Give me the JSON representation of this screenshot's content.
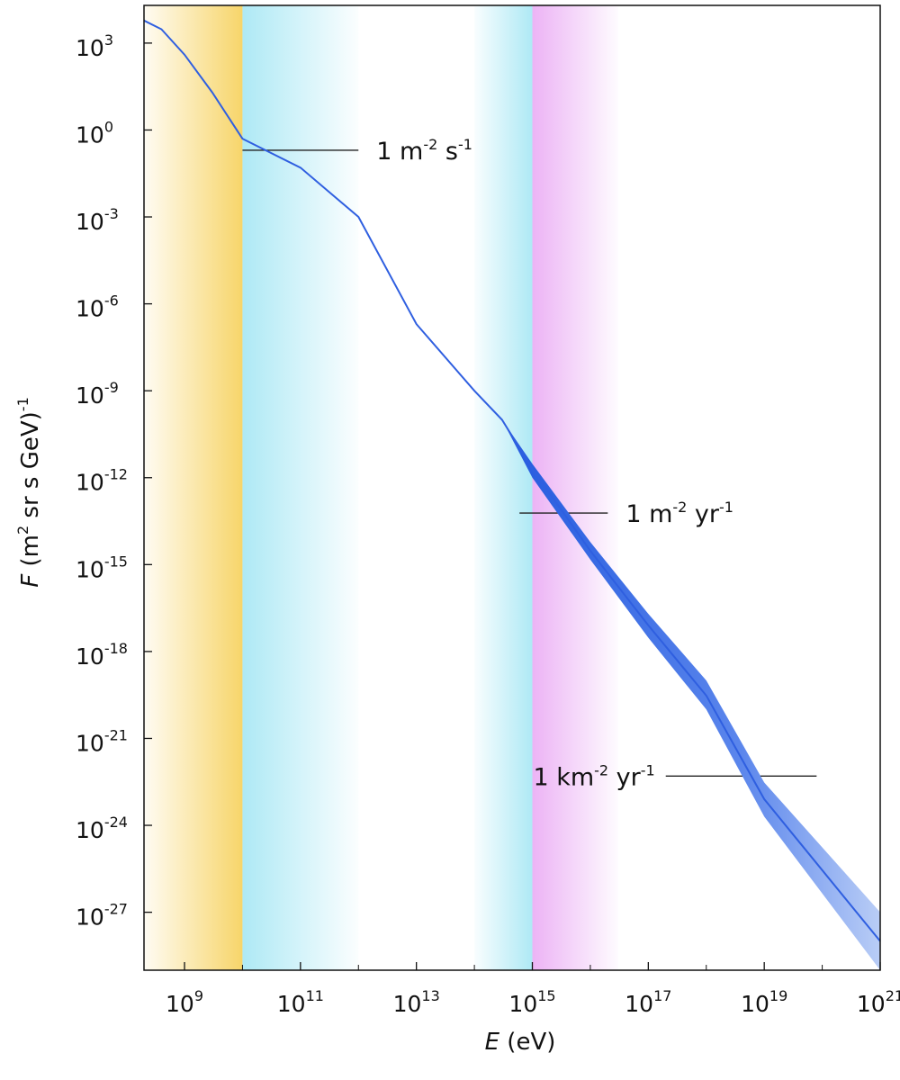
{
  "chart_data": {
    "type": "line",
    "title": "",
    "xlabel": "E (eV)",
    "xlabel_var": "E",
    "xlabel_unit": " (eV)",
    "ylabel": "F (m2 sr s GeV)-1",
    "ylabel_var": "F",
    "ylabel_unit": "m",
    "ylabel_unit_sup": "2",
    "ylabel_unit_rest": " sr s GeV)",
    "ylabel_unit_exp": "-1",
    "x_scale": "log",
    "y_scale": "log",
    "xlim": [
      200000000.0,
      1e+21
    ],
    "ylim": [
      1e-29,
      20000.0
    ],
    "x_ticks": [
      {
        "base": "10",
        "exp": "9",
        "value": 1000000000.0
      },
      {
        "base": "10",
        "exp": "11",
        "value": 100000000000.0
      },
      {
        "base": "10",
        "exp": "13",
        "value": 10000000000000.0
      },
      {
        "base": "10",
        "exp": "15",
        "value": 1000000000000000.0
      },
      {
        "base": "10",
        "exp": "17",
        "value": 1e+17
      },
      {
        "base": "10",
        "exp": "19",
        "value": 1e+19
      },
      {
        "base": "10",
        "exp": "21",
        "value": 1e+21
      }
    ],
    "y_ticks": [
      {
        "base": "10",
        "exp": "3",
        "value": 1000.0
      },
      {
        "base": "10",
        "exp": "0",
        "value": 1.0
      },
      {
        "base": "10",
        "exp": "-3",
        "value": 0.001
      },
      {
        "base": "10",
        "exp": "-6",
        "value": 1e-06
      },
      {
        "base": "10",
        "exp": "-9",
        "value": 1e-09
      },
      {
        "base": "10",
        "exp": "-12",
        "value": 1e-12
      },
      {
        "base": "10",
        "exp": "-15",
        "value": 1e-15
      },
      {
        "base": "10",
        "exp": "-18",
        "value": 1e-18
      },
      {
        "base": "10",
        "exp": "-21",
        "value": 1e-21
      },
      {
        "base": "10",
        "exp": "-24",
        "value": 1e-24
      },
      {
        "base": "10",
        "exp": "-27",
        "value": 1e-27
      }
    ],
    "grid": false,
    "series": [
      {
        "color": "#2f5fe0",
        "points": [
          {
            "x": 200000000.0,
            "y": 6000.0,
            "ylo": 6000.0,
            "yhi": 6000.0
          },
          {
            "x": 400000000.0,
            "y": 3000.0,
            "ylo": 3000.0,
            "yhi": 3000.0
          },
          {
            "x": 1000000000.0,
            "y": 400.0,
            "ylo": 400.0,
            "yhi": 400.0
          },
          {
            "x": 3000000000.0,
            "y": 20.0,
            "ylo": 20.0,
            "yhi": 20.0
          },
          {
            "x": 10000000000.0,
            "y": 0.5,
            "ylo": 0.5,
            "yhi": 0.5
          },
          {
            "x": 100000000000.0,
            "y": 0.05,
            "ylo": 0.05,
            "yhi": 0.05
          },
          {
            "x": 1000000000000.0,
            "y": 0.001,
            "ylo": 0.001,
            "yhi": 0.001
          },
          {
            "x": 10000000000000.0,
            "y": 2e-07,
            "ylo": 2e-07,
            "yhi": 2e-07
          },
          {
            "x": 100000000000000.0,
            "y": 1e-09,
            "ylo": 1e-09,
            "yhi": 1e-09
          },
          {
            "x": 300000000000000.0,
            "y": 1e-10,
            "ylo": 1e-10,
            "yhi": 1e-10
          },
          {
            "x": 1000000000000000.0,
            "y": 2e-12,
            "ylo": 1e-12,
            "yhi": 3e-12
          },
          {
            "x": 1e+16,
            "y": 3e-15,
            "ylo": 1.5e-15,
            "yhi": 6e-15
          },
          {
            "x": 1e+17,
            "y": 8e-18,
            "ylo": 3e-18,
            "yhi": 2e-17
          },
          {
            "x": 1e+18,
            "y": 3e-20,
            "ylo": 1e-20,
            "yhi": 1e-19
          },
          {
            "x": 1e+19,
            "y": 8e-24,
            "ylo": 2e-24,
            "yhi": 3e-23
          },
          {
            "x": 1e+21,
            "y": 1e-28,
            "ylo": 1e-29,
            "yhi": 1e-27
          }
        ]
      }
    ],
    "regions": [
      {
        "from": 200000000.0,
        "to": 10000000000.0,
        "color": "#f7d56a",
        "fade": "right-dense"
      },
      {
        "from": 10000000000.0,
        "to": 1000000000000.0,
        "color": "#aee9f5",
        "fade": "left-dense"
      },
      {
        "from": 100000000000000.0,
        "to": 1000000000000000.0,
        "color": "#aee9f5",
        "fade": "right-dense"
      },
      {
        "from": 1000000000000000.0,
        "to": 3e+16,
        "color": "#ecb3f5",
        "fade": "left-dense"
      }
    ],
    "annotations": [
      {
        "text": "1 m",
        "sup": "-2",
        "rest": " s",
        "sup2": "-1",
        "y": 0.2,
        "x_from": 10000000000.0,
        "x_to": 1000000000000.0,
        "label_side": "right"
      },
      {
        "text": "1 m",
        "sup": "-2",
        "rest": " yr",
        "sup2": "-1",
        "y": 6e-14,
        "x_from": 600000000000000.0,
        "x_to": 2e+16,
        "label_side": "right"
      },
      {
        "text": "1 km",
        "sup": "-2",
        "rest": " yr",
        "sup2": "-1",
        "y": 5e-23,
        "x_from": 2e+17,
        "x_to": 8e+19,
        "label_side": "left"
      }
    ]
  }
}
